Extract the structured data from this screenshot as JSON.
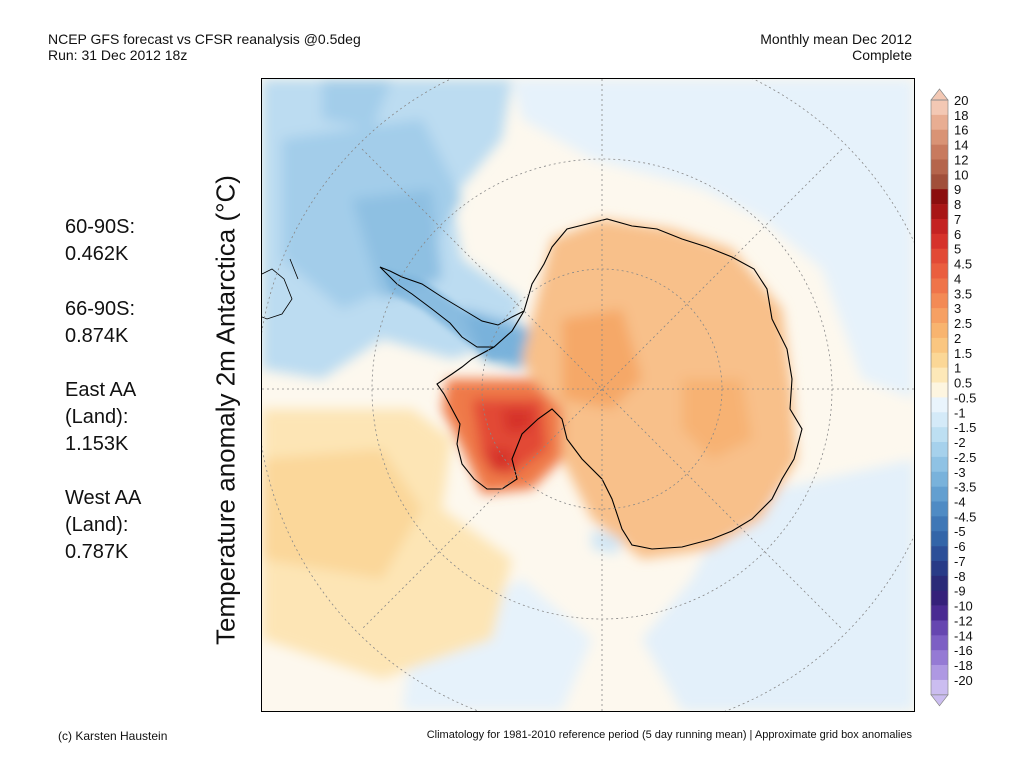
{
  "header": {
    "left_line1": "NCEP GFS forecast vs CFSR reanalysis @0.5deg",
    "left_line2": "Run: 31 Dec 2012 18z",
    "right_line1": "Monthly mean Dec 2012",
    "right_line2": "Complete"
  },
  "y_axis_label": "Temperature anomaly 2m Antarctica (°C)",
  "stats": [
    {
      "lines": [
        "60-90S:",
        "0.462K"
      ]
    },
    {
      "lines": [
        "66-90S:",
        "0.874K"
      ]
    },
    {
      "lines": [
        "East AA",
        "(Land):",
        "1.153K"
      ]
    },
    {
      "lines": [
        "West AA",
        "(Land):",
        "0.787K"
      ]
    }
  ],
  "footer": {
    "credit": "(c) Karsten Haustein",
    "note": "Climatology for 1981-2010 reference period (5 day running mean) | Approximate grid box anomalies"
  },
  "colorbar": {
    "labels": [
      "20",
      "18",
      "16",
      "14",
      "12",
      "10",
      "9",
      "8",
      "7",
      "6",
      "5",
      "4.5",
      "4",
      "3.5",
      "3",
      "2.5",
      "2",
      "1.5",
      "1",
      "0.5",
      "-0.5",
      "-1",
      "-1.5",
      "-2",
      "-2.5",
      "-3",
      "-3.5",
      "-4",
      "-4.5",
      "-5",
      "-6",
      "-7",
      "-8",
      "-9",
      "-10",
      "-12",
      "-14",
      "-16",
      "-18",
      "-20"
    ],
    "colors": [
      "#f3c8b4",
      "#e8ad92",
      "#d99375",
      "#c87a5e",
      "#b5654c",
      "#a14f3a",
      "#8b0e0e",
      "#a81616",
      "#c42222",
      "#d6322b",
      "#e24a36",
      "#ea5e3f",
      "#ef744a",
      "#f38a55",
      "#f6a063",
      "#f8b46f",
      "#fac680",
      "#fbd796",
      "#fde8b8",
      "#fdf5e0",
      "#e9f4fc",
      "#d4eaf8",
      "#bddff2",
      "#a6d1ec",
      "#8fc2e4",
      "#79b2db",
      "#639fd0",
      "#4f8bc4",
      "#3f77b6",
      "#3365a8",
      "#2c4f98",
      "#283b87",
      "#2a2a78",
      "#35207a",
      "#4a2a92",
      "#6646b0",
      "#7d5fc4",
      "#957ad4",
      "#ae98e2",
      "#cbbdf0"
    ]
  },
  "map": {
    "legend_note": "",
    "regions_description_colors": {
      "ocean_warm_light": "#fde8b8",
      "ocean_neutral": "#fdf5e0",
      "ocean_cool_light": "#e3f0fa",
      "continent_warm": "#f8be85",
      "peninsula_cool": "#8fc2e4",
      "west_aa_hot": "#e24a36"
    }
  }
}
